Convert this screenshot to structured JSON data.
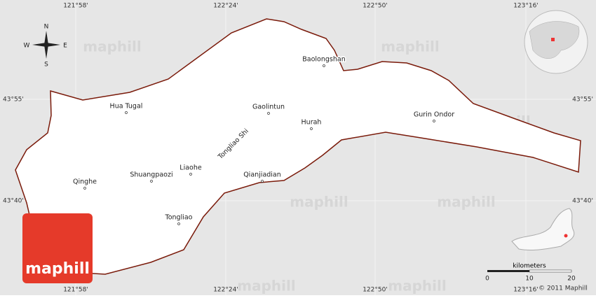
{
  "map": {
    "watermark": "maphill",
    "logo": "maphill",
    "grid": {
      "top": [
        "121°58'",
        "122°24'",
        "122°50'",
        "123°16'"
      ],
      "bottom": [
        "121°58'",
        "122°24'",
        "122°50'",
        "123°16'"
      ],
      "left": [
        "43°55'",
        "43°40'"
      ],
      "right": [
        "43°55'",
        "43°40'"
      ]
    },
    "compass": {
      "n": "N",
      "e": "E",
      "s": "S",
      "w": "W"
    },
    "places": [
      "Baolongshan",
      "Hua Tugal",
      "Gaolintun",
      "Hurah",
      "Gurin Ondor",
      "Qinghe",
      "Shuangpaozi",
      "Liaohe",
      "Qianjiadian",
      "Tongliao"
    ],
    "region": "Tongliao Shi",
    "scale": {
      "unit": "kilometers",
      "ticks": [
        0,
        10,
        20
      ]
    },
    "copyright": "© 2011 Maphill"
  }
}
